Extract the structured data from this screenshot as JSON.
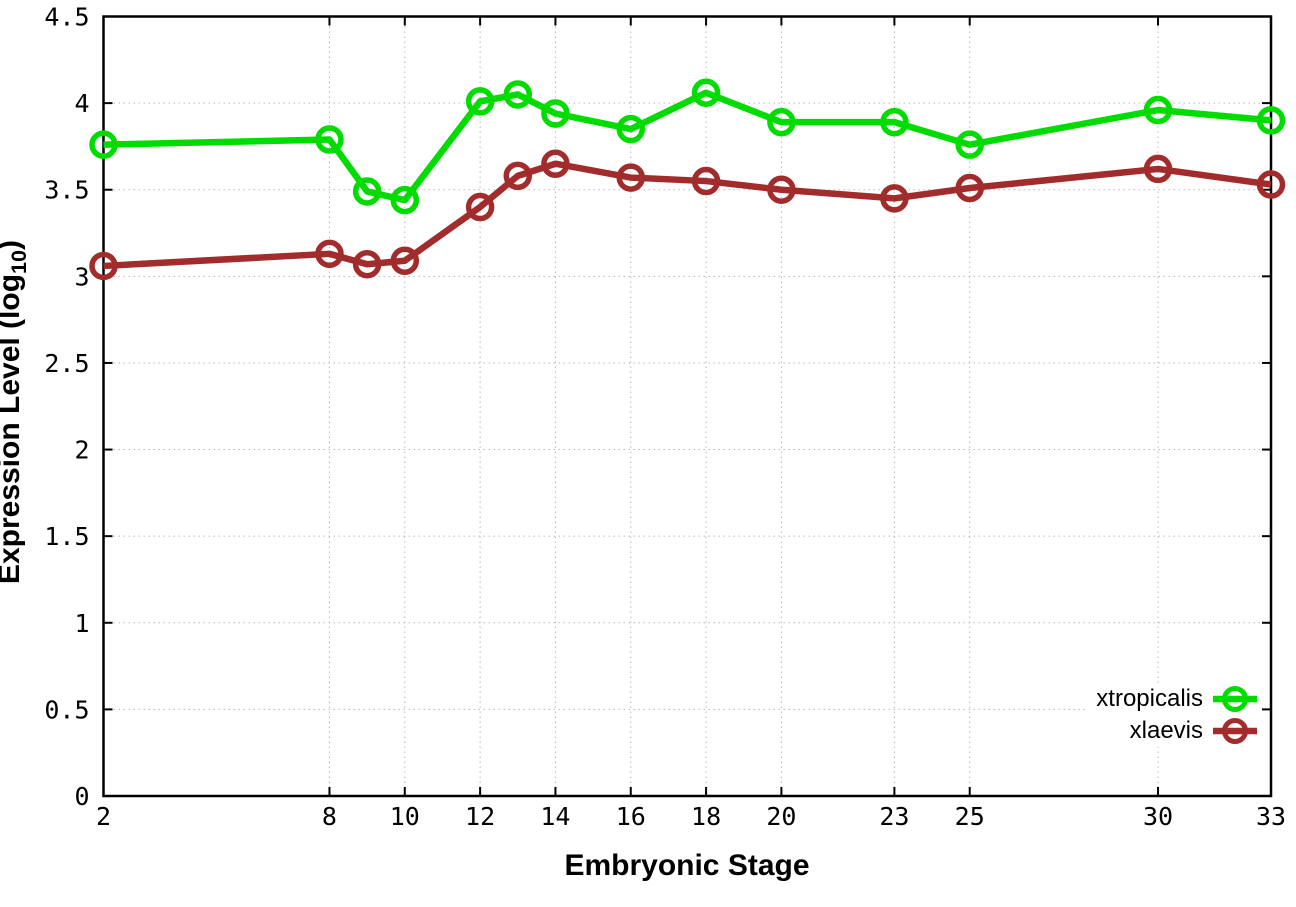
{
  "chart_data": {
    "type": "line",
    "title": "",
    "xlabel": "Embryonic Stage",
    "ylabel_prefix": "Expression Level (log",
    "ylabel_sub": "10",
    "ylabel_suffix": ")",
    "x": [
      2,
      8,
      9,
      10,
      12,
      13,
      14,
      16,
      18,
      20,
      23,
      25,
      30,
      33
    ],
    "series": [
      {
        "name": "xtropicalis",
        "color": "#00DC00",
        "values": [
          3.76,
          3.79,
          3.49,
          3.44,
          4.01,
          4.05,
          3.94,
          3.85,
          4.06,
          3.89,
          3.89,
          3.76,
          3.96,
          3.9
        ]
      },
      {
        "name": "xlaevis",
        "color": "#A22C2C",
        "values": [
          3.06,
          3.13,
          3.07,
          3.09,
          3.4,
          3.58,
          3.65,
          3.57,
          3.55,
          3.5,
          3.45,
          3.51,
          3.62,
          3.53
        ]
      }
    ],
    "xlim": [
      2,
      33
    ],
    "ylim": [
      0,
      4.5
    ],
    "xticks": [
      2,
      8,
      10,
      12,
      14,
      16,
      18,
      20,
      23,
      25,
      30,
      33
    ],
    "xtick_labels": [
      "2",
      "8",
      "10",
      "12",
      "14",
      "16",
      "18",
      "20",
      "23",
      "25",
      "30",
      "33"
    ],
    "yticks": [
      0,
      0.5,
      1,
      1.5,
      2,
      2.5,
      3,
      3.5,
      4,
      4.5
    ],
    "ytick_labels": [
      "0",
      "0.5",
      "1",
      "1.5",
      "2",
      "2.5",
      "3",
      "3.5",
      "4",
      "4.5"
    ],
    "grid": true,
    "grid_style": "dotted",
    "legend_position": "inside-bottom-right",
    "marker": "open-circle",
    "axis_color": "#000000",
    "grid_color": "#b8b8b8"
  }
}
